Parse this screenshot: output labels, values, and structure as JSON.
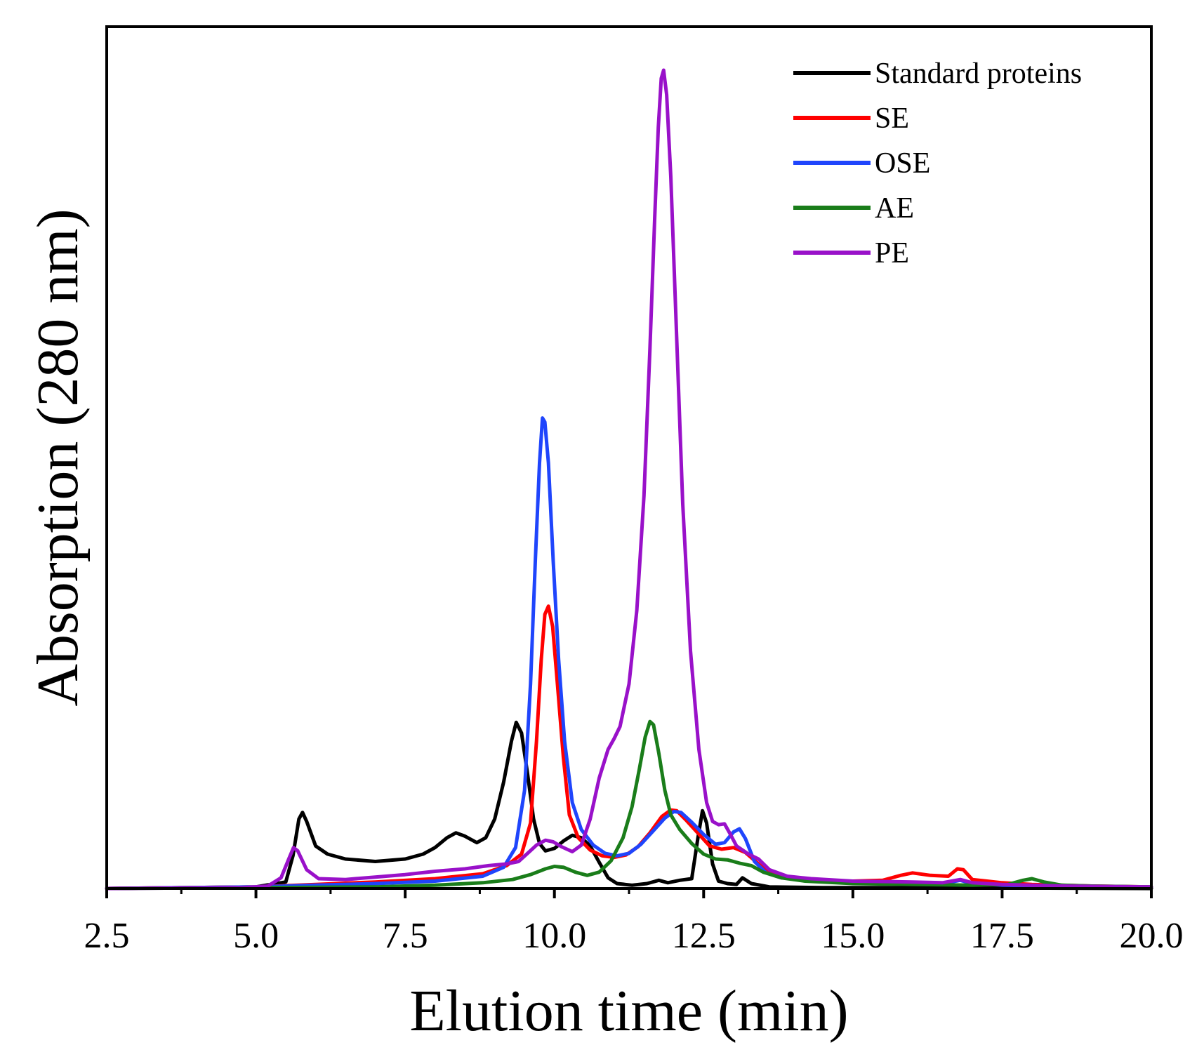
{
  "chart_data": {
    "type": "line",
    "title": "",
    "xlabel": "Elution time (min)",
    "ylabel": "Absorption (280 nm)",
    "xlim": [
      2.5,
      20.0
    ],
    "ylim": [
      0,
      100
    ],
    "grid": false,
    "legend_position": "top-right",
    "x_ticks": [
      "2.5",
      "5.0",
      "7.5",
      "10.0",
      "12.5",
      "15.0",
      "17.5",
      "20.0"
    ],
    "series": [
      {
        "name": "Standard proteins",
        "color": "#000000",
        "points": [
          [
            2.5,
            0
          ],
          [
            5.0,
            0.2
          ],
          [
            5.5,
            0.8
          ],
          [
            5.62,
            4
          ],
          [
            5.72,
            8.5
          ],
          [
            5.78,
            9.3
          ],
          [
            5.85,
            8.2
          ],
          [
            6.0,
            5.2
          ],
          [
            6.2,
            4.2
          ],
          [
            6.5,
            3.6
          ],
          [
            7.0,
            3.3
          ],
          [
            7.5,
            3.6
          ],
          [
            7.8,
            4.2
          ],
          [
            8.0,
            5.0
          ],
          [
            8.2,
            6.2
          ],
          [
            8.35,
            6.8
          ],
          [
            8.5,
            6.4
          ],
          [
            8.7,
            5.6
          ],
          [
            8.85,
            6.2
          ],
          [
            9.0,
            8.5
          ],
          [
            9.15,
            13
          ],
          [
            9.28,
            18
          ],
          [
            9.36,
            20.3
          ],
          [
            9.45,
            19
          ],
          [
            9.55,
            14
          ],
          [
            9.65,
            8.5
          ],
          [
            9.75,
            5.5
          ],
          [
            9.85,
            4.6
          ],
          [
            10.0,
            4.9
          ],
          [
            10.15,
            5.8
          ],
          [
            10.3,
            6.5
          ],
          [
            10.45,
            6.2
          ],
          [
            10.6,
            5.2
          ],
          [
            10.75,
            3.2
          ],
          [
            10.9,
            1.3
          ],
          [
            11.05,
            0.6
          ],
          [
            11.3,
            0.4
          ],
          [
            11.55,
            0.6
          ],
          [
            11.75,
            1.0
          ],
          [
            11.9,
            0.7
          ],
          [
            12.1,
            1.0
          ],
          [
            12.3,
            1.2
          ],
          [
            12.4,
            6
          ],
          [
            12.48,
            9.5
          ],
          [
            12.55,
            8
          ],
          [
            12.65,
            3
          ],
          [
            12.75,
            0.9
          ],
          [
            12.9,
            0.6
          ],
          [
            13.05,
            0.5
          ],
          [
            13.15,
            1.3
          ],
          [
            13.3,
            0.6
          ],
          [
            13.6,
            0.2
          ],
          [
            14.5,
            0.1
          ],
          [
            16.0,
            0.1
          ],
          [
            20.0,
            0
          ]
        ]
      },
      {
        "name": "SE",
        "color": "#ff0000",
        "points": [
          [
            2.5,
            0
          ],
          [
            5.0,
            0.2
          ],
          [
            6.0,
            0.5
          ],
          [
            7.0,
            0.8
          ],
          [
            8.0,
            1.2
          ],
          [
            8.8,
            1.8
          ],
          [
            9.2,
            2.8
          ],
          [
            9.45,
            4.2
          ],
          [
            9.6,
            8
          ],
          [
            9.7,
            18
          ],
          [
            9.78,
            28
          ],
          [
            9.84,
            33.5
          ],
          [
            9.9,
            34.5
          ],
          [
            9.97,
            32
          ],
          [
            10.05,
            25
          ],
          [
            10.15,
            16
          ],
          [
            10.25,
            9
          ],
          [
            10.4,
            6.2
          ],
          [
            10.6,
            4.7
          ],
          [
            10.8,
            4.0
          ],
          [
            11.0,
            3.8
          ],
          [
            11.2,
            4.1
          ],
          [
            11.4,
            5.1
          ],
          [
            11.6,
            6.8
          ],
          [
            11.8,
            8.8
          ],
          [
            11.95,
            9.6
          ],
          [
            12.05,
            9.5
          ],
          [
            12.2,
            8.4
          ],
          [
            12.4,
            6.8
          ],
          [
            12.6,
            5.2
          ],
          [
            12.8,
            4.8
          ],
          [
            13.0,
            5.0
          ],
          [
            13.2,
            4.4
          ],
          [
            13.45,
            2.8
          ],
          [
            13.7,
            1.7
          ],
          [
            14.0,
            1.2
          ],
          [
            14.5,
            0.9
          ],
          [
            15.0,
            0.9
          ],
          [
            15.5,
            1.0
          ],
          [
            15.8,
            1.6
          ],
          [
            16.0,
            1.9
          ],
          [
            16.3,
            1.6
          ],
          [
            16.6,
            1.5
          ],
          [
            16.75,
            2.4
          ],
          [
            16.85,
            2.3
          ],
          [
            17.0,
            1.1
          ],
          [
            17.5,
            0.7
          ],
          [
            18.0,
            0.5
          ],
          [
            19.0,
            0.3
          ],
          [
            20.0,
            0.2
          ]
        ]
      },
      {
        "name": "OSE",
        "color": "#1f45fc",
        "points": [
          [
            2.5,
            0
          ],
          [
            5.0,
            0.2
          ],
          [
            6.0,
            0.4
          ],
          [
            7.0,
            0.6
          ],
          [
            8.0,
            0.9
          ],
          [
            8.8,
            1.5
          ],
          [
            9.15,
            2.6
          ],
          [
            9.35,
            5
          ],
          [
            9.5,
            12
          ],
          [
            9.6,
            25
          ],
          [
            9.68,
            40
          ],
          [
            9.75,
            52
          ],
          [
            9.8,
            57.5
          ],
          [
            9.84,
            57
          ],
          [
            9.9,
            52
          ],
          [
            9.98,
            40
          ],
          [
            10.07,
            28
          ],
          [
            10.17,
            18
          ],
          [
            10.3,
            10.5
          ],
          [
            10.45,
            7.2
          ],
          [
            10.65,
            5.3
          ],
          [
            10.85,
            4.3
          ],
          [
            11.05,
            4.0
          ],
          [
            11.25,
            4.3
          ],
          [
            11.45,
            5.4
          ],
          [
            11.65,
            7.0
          ],
          [
            11.85,
            8.6
          ],
          [
            12.0,
            9.4
          ],
          [
            12.12,
            9.3
          ],
          [
            12.3,
            8.1
          ],
          [
            12.5,
            6.6
          ],
          [
            12.7,
            5.4
          ],
          [
            12.85,
            5.6
          ],
          [
            13.0,
            6.9
          ],
          [
            13.1,
            7.3
          ],
          [
            13.2,
            6.1
          ],
          [
            13.35,
            3.3
          ],
          [
            13.55,
            1.9
          ],
          [
            13.8,
            1.3
          ],
          [
            14.2,
            1.1
          ],
          [
            14.6,
            0.9
          ],
          [
            15.0,
            0.8
          ],
          [
            15.5,
            0.6
          ],
          [
            16.0,
            0.7
          ],
          [
            16.5,
            0.6
          ],
          [
            16.8,
            1.0
          ],
          [
            17.0,
            0.6
          ],
          [
            17.5,
            0.4
          ],
          [
            18.5,
            0.3
          ],
          [
            20.0,
            0.2
          ]
        ]
      },
      {
        "name": "AE",
        "color": "#1a7d1a",
        "points": [
          [
            2.5,
            0
          ],
          [
            5.0,
            0.1
          ],
          [
            7.0,
            0.2
          ],
          [
            8.0,
            0.4
          ],
          [
            8.8,
            0.7
          ],
          [
            9.3,
            1.1
          ],
          [
            9.6,
            1.7
          ],
          [
            9.85,
            2.4
          ],
          [
            10.0,
            2.7
          ],
          [
            10.15,
            2.6
          ],
          [
            10.35,
            2.0
          ],
          [
            10.55,
            1.6
          ],
          [
            10.75,
            2.0
          ],
          [
            10.95,
            3.4
          ],
          [
            11.15,
            6.2
          ],
          [
            11.3,
            10
          ],
          [
            11.42,
            14.5
          ],
          [
            11.52,
            18.5
          ],
          [
            11.6,
            20.4
          ],
          [
            11.66,
            20
          ],
          [
            11.75,
            16.5
          ],
          [
            11.85,
            12
          ],
          [
            11.95,
            9.0
          ],
          [
            12.1,
            7.2
          ],
          [
            12.3,
            5.5
          ],
          [
            12.5,
            4.2
          ],
          [
            12.7,
            3.6
          ],
          [
            12.9,
            3.5
          ],
          [
            13.1,
            3.1
          ],
          [
            13.3,
            2.8
          ],
          [
            13.5,
            2.0
          ],
          [
            13.8,
            1.3
          ],
          [
            14.2,
            0.9
          ],
          [
            15.0,
            0.6
          ],
          [
            16.0,
            0.5
          ],
          [
            17.0,
            0.4
          ],
          [
            17.6,
            0.5
          ],
          [
            17.85,
            1.0
          ],
          [
            18.0,
            1.2
          ],
          [
            18.2,
            0.8
          ],
          [
            18.5,
            0.4
          ],
          [
            19.0,
            0.3
          ],
          [
            20.0,
            0.2
          ]
        ]
      },
      {
        "name": "PE",
        "color": "#9911c9",
        "points": [
          [
            2.5,
            0
          ],
          [
            4.8,
            0.1
          ],
          [
            5.2,
            0.3
          ],
          [
            5.42,
            1.3
          ],
          [
            5.55,
            3.6
          ],
          [
            5.63,
            5.0
          ],
          [
            5.7,
            4.6
          ],
          [
            5.85,
            2.3
          ],
          [
            6.05,
            1.2
          ],
          [
            6.5,
            1.1
          ],
          [
            7.0,
            1.4
          ],
          [
            7.5,
            1.7
          ],
          [
            8.0,
            2.1
          ],
          [
            8.5,
            2.4
          ],
          [
            8.9,
            2.8
          ],
          [
            9.2,
            3.0
          ],
          [
            9.4,
            3.3
          ],
          [
            9.55,
            4.3
          ],
          [
            9.7,
            5.3
          ],
          [
            9.85,
            5.9
          ],
          [
            9.98,
            5.7
          ],
          [
            10.12,
            5.1
          ],
          [
            10.3,
            4.5
          ],
          [
            10.45,
            5.3
          ],
          [
            10.6,
            8.5
          ],
          [
            10.75,
            13.5
          ],
          [
            10.9,
            17.0
          ],
          [
            11.0,
            18.3
          ],
          [
            11.1,
            19.8
          ],
          [
            11.25,
            25
          ],
          [
            11.38,
            34
          ],
          [
            11.5,
            48
          ],
          [
            11.6,
            66
          ],
          [
            11.68,
            82
          ],
          [
            11.74,
            93
          ],
          [
            11.79,
            99
          ],
          [
            11.83,
            100
          ],
          [
            11.88,
            97
          ],
          [
            11.95,
            87
          ],
          [
            12.05,
            67
          ],
          [
            12.15,
            47
          ],
          [
            12.28,
            29
          ],
          [
            12.42,
            17
          ],
          [
            12.55,
            10.5
          ],
          [
            12.65,
            8.2
          ],
          [
            12.75,
            7.8
          ],
          [
            12.85,
            7.9
          ],
          [
            12.95,
            6.6
          ],
          [
            13.05,
            5.2
          ],
          [
            13.25,
            4.2
          ],
          [
            13.42,
            3.6
          ],
          [
            13.6,
            2.3
          ],
          [
            13.9,
            1.5
          ],
          [
            14.3,
            1.2
          ],
          [
            15.0,
            0.9
          ],
          [
            16.0,
            0.8
          ],
          [
            16.5,
            0.7
          ],
          [
            16.8,
            1.1
          ],
          [
            17.0,
            0.7
          ],
          [
            17.5,
            0.5
          ],
          [
            18.5,
            0.3
          ],
          [
            20.0,
            0.2
          ]
        ]
      }
    ]
  }
}
